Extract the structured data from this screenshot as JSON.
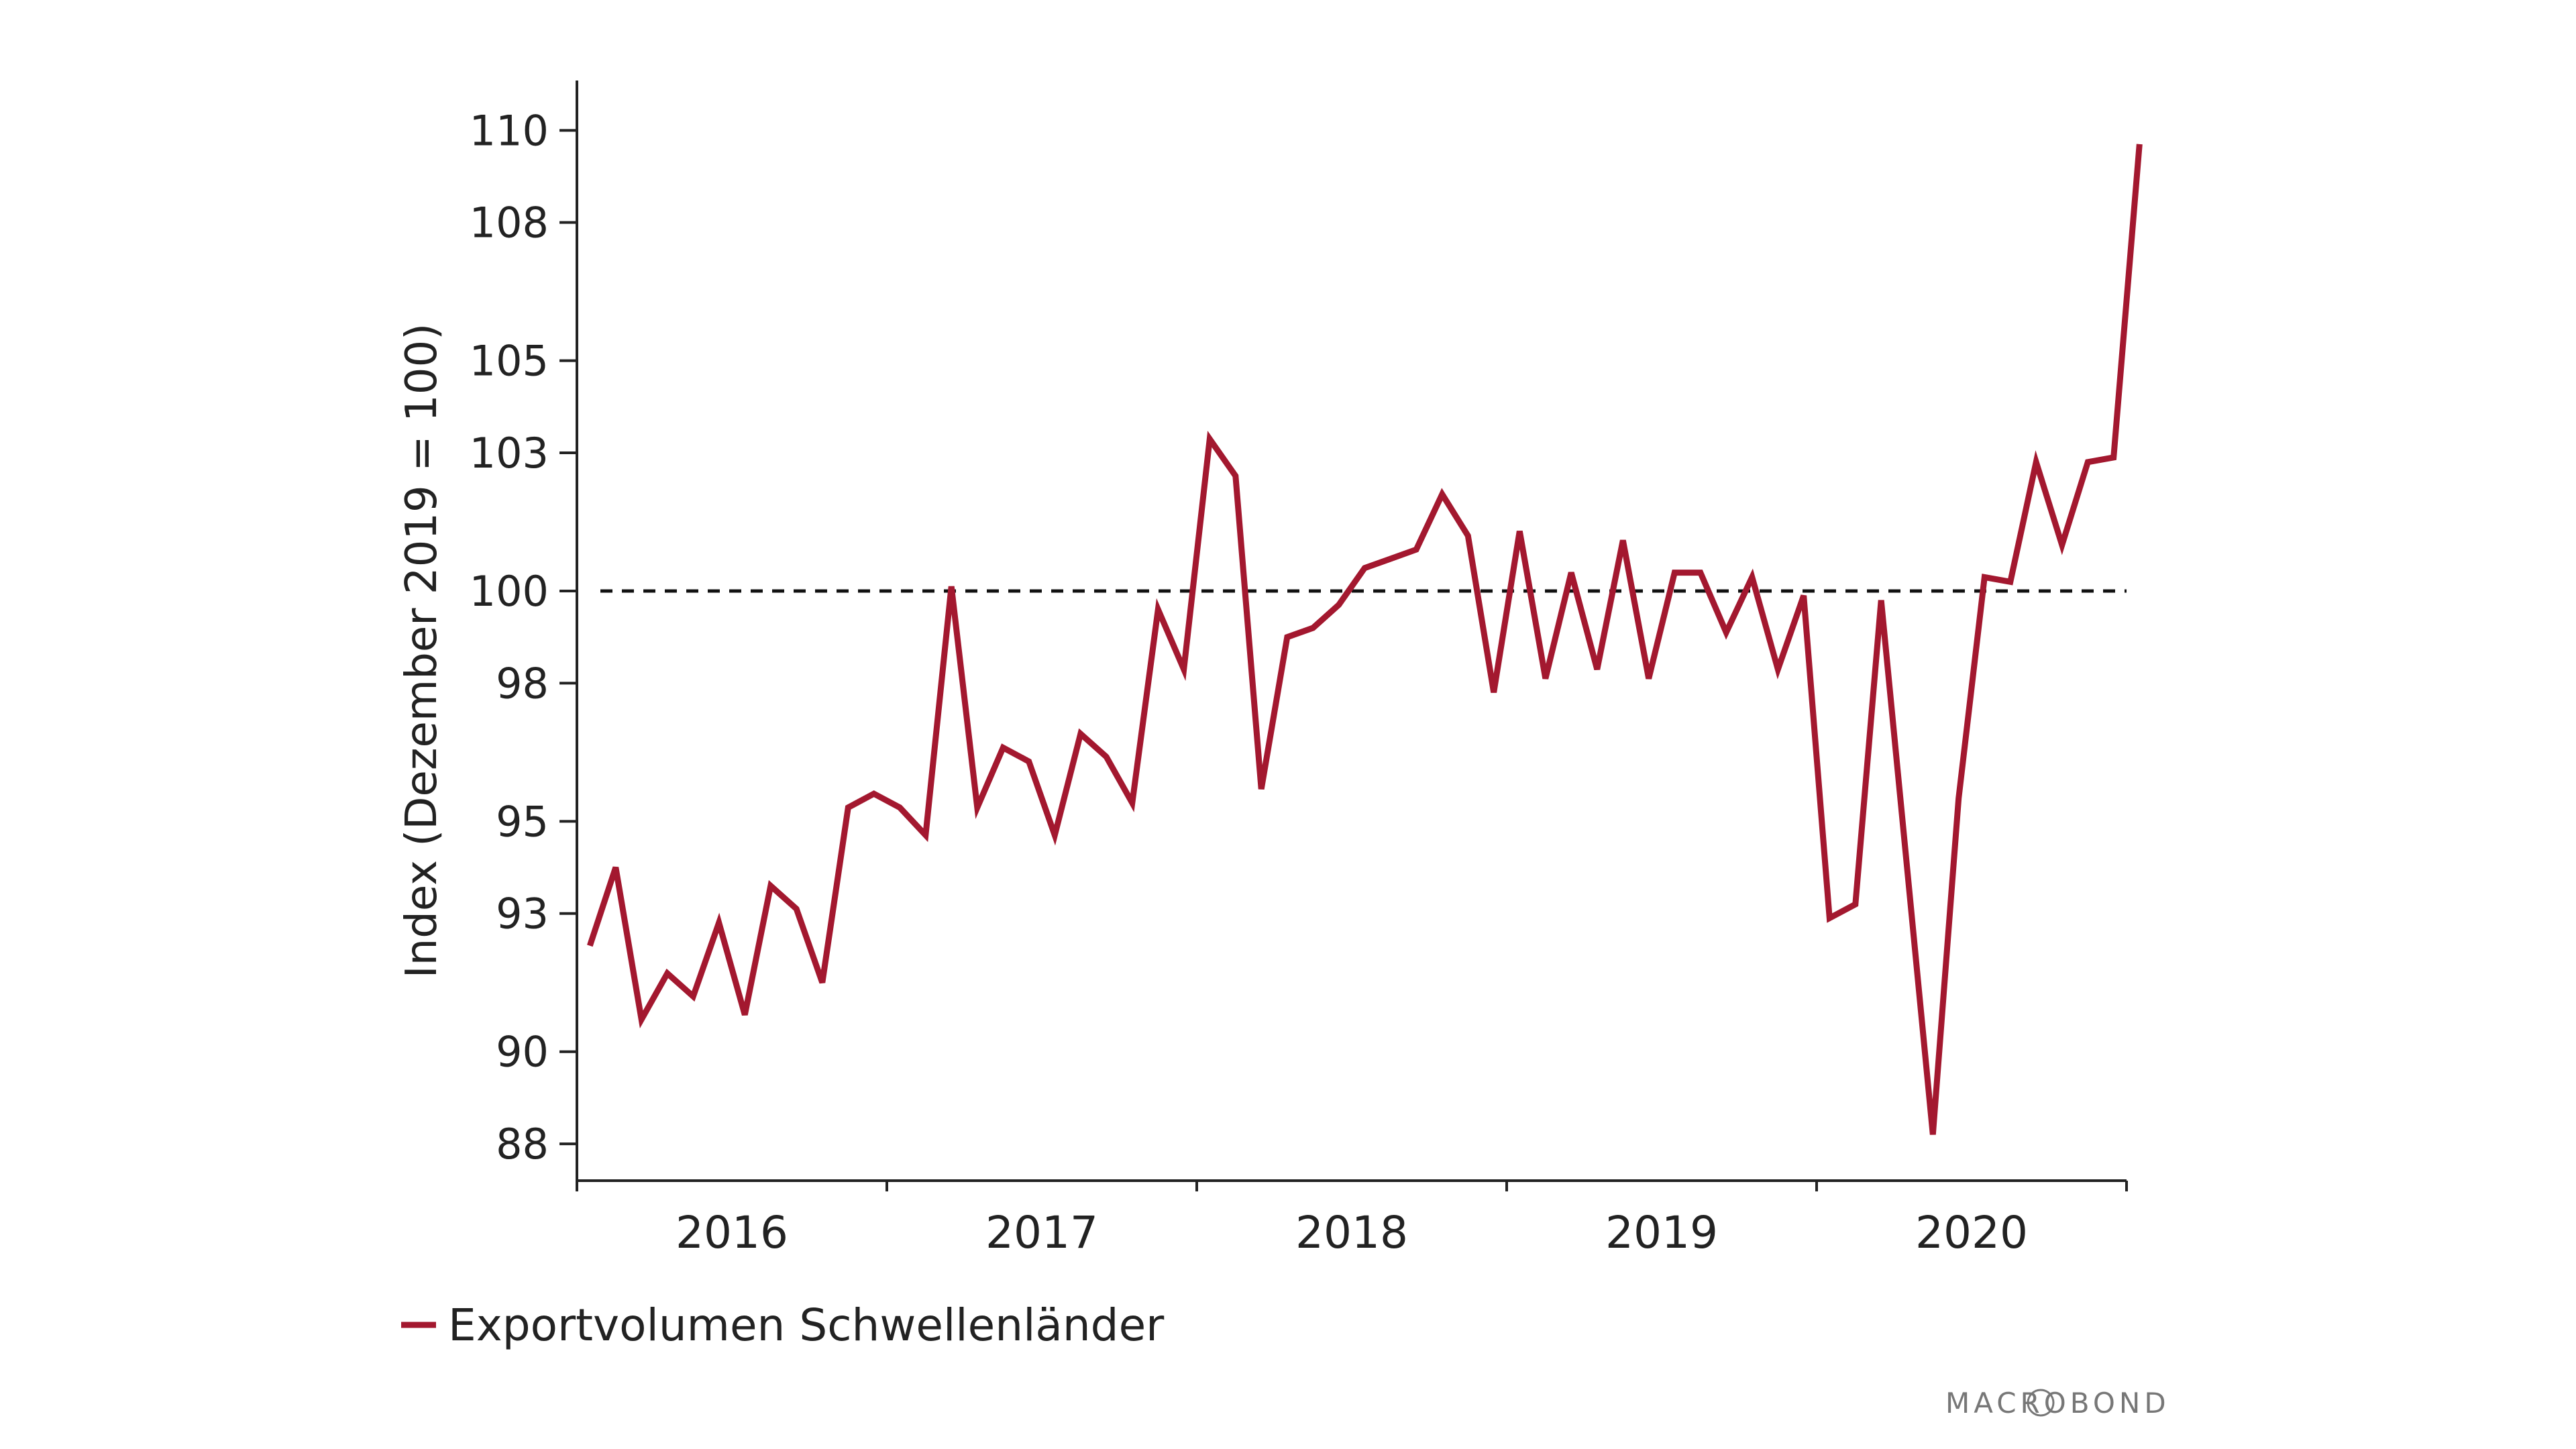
{
  "chart_data": {
    "type": "line",
    "title": "",
    "xlabel": "",
    "ylabel": "Index (Dezember 2019 = 100)",
    "ylim": [
      87.2,
      110.5
    ],
    "y_ticks": [
      88,
      90,
      93,
      95,
      98,
      100,
      103,
      105,
      108,
      110
    ],
    "x_categories": [
      "2016",
      "2017",
      "2018",
      "2019",
      "2020"
    ],
    "reference_line": {
      "value": 100,
      "style": "dashed"
    },
    "series": [
      {
        "name": "Exportvolumen Schwellenländer",
        "color": "#a3182f",
        "x": [
          "2016-01",
          "2016-02",
          "2016-03",
          "2016-04",
          "2016-05",
          "2016-06",
          "2016-07",
          "2016-08",
          "2016-09",
          "2016-10",
          "2016-11",
          "2016-12",
          "2017-01",
          "2017-02",
          "2017-03",
          "2017-04",
          "2017-05",
          "2017-06",
          "2017-07",
          "2017-08",
          "2017-09",
          "2017-10",
          "2017-11",
          "2017-12",
          "2018-01",
          "2018-02",
          "2018-03",
          "2018-04",
          "2018-05",
          "2018-06",
          "2018-07",
          "2018-08",
          "2018-09",
          "2018-10",
          "2018-11",
          "2018-12",
          "2019-01",
          "2019-02",
          "2019-03",
          "2019-04",
          "2019-05",
          "2019-06",
          "2019-07",
          "2019-08",
          "2019-09",
          "2019-10",
          "2019-11",
          "2019-12",
          "2020-01",
          "2020-02",
          "2020-03",
          "2020-04",
          "2020-05",
          "2020-06",
          "2020-07",
          "2020-08",
          "2020-09",
          "2020-10",
          "2020-11",
          "2020-12",
          "2021-01"
        ],
        "values": [
          92.3,
          94.0,
          90.7,
          91.7,
          91.2,
          92.8,
          90.8,
          93.6,
          93.1,
          91.5,
          95.3,
          95.6,
          95.3,
          94.7,
          100.1,
          95.3,
          96.6,
          96.3,
          94.7,
          96.9,
          96.4,
          95.4,
          99.6,
          98.3,
          103.3,
          102.5,
          95.7,
          99.0,
          99.2,
          99.7,
          100.5,
          100.7,
          100.9,
          102.1,
          101.2,
          97.8,
          101.3,
          98.1,
          100.4,
          98.3,
          101.1,
          98.1,
          100.4,
          100.4,
          99.1,
          100.3,
          98.3,
          99.9,
          92.9,
          93.2,
          99.8,
          94.0,
          88.2,
          95.5,
          100.3,
          100.2,
          102.8,
          101.0,
          102.8,
          102.9,
          109.7
        ]
      }
    ],
    "legend": {
      "placement": "bottom-left"
    }
  },
  "branding": {
    "text": "MACROBOND"
  }
}
